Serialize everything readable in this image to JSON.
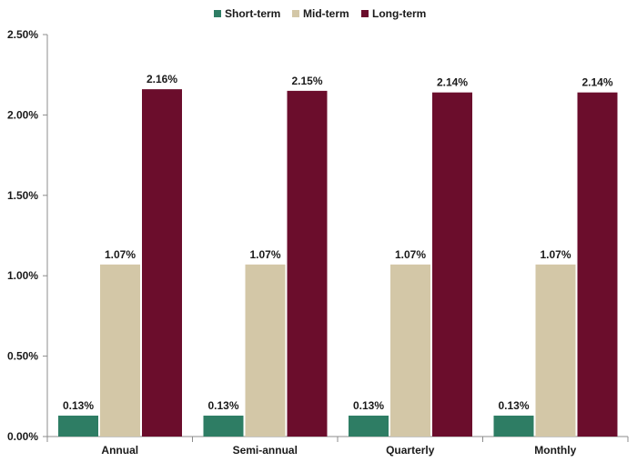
{
  "chart_data": {
    "type": "bar",
    "title": "",
    "xlabel": "",
    "ylabel": "",
    "categories": [
      "Annual",
      "Semi-annual",
      "Quarterly",
      "Monthly"
    ],
    "series": [
      {
        "name": "Short-term",
        "values": [
          0.13,
          0.13,
          0.13,
          0.13
        ],
        "labels": [
          "0.13%",
          "0.13%",
          "0.13%",
          "0.13%"
        ],
        "color": "#2e7d64"
      },
      {
        "name": "Mid-term",
        "values": [
          1.07,
          1.07,
          1.07,
          1.07
        ],
        "labels": [
          "1.07%",
          "1.07%",
          "1.07%",
          "1.07%"
        ],
        "color": "#d3c7a7"
      },
      {
        "name": "Long-term",
        "values": [
          2.16,
          2.15,
          2.14,
          2.14
        ],
        "labels": [
          "2.16%",
          "2.15%",
          "2.14%",
          "2.14%"
        ],
        "color": "#6b0d2c"
      }
    ],
    "ylim": [
      0,
      2.5
    ],
    "yticks": [
      {
        "value": 0,
        "label": "0.00%"
      },
      {
        "value": 0.5,
        "label": "0.50%"
      },
      {
        "value": 1.0,
        "label": "1.00%"
      },
      {
        "value": 1.5,
        "label": "1.50%"
      },
      {
        "value": 2.0,
        "label": "2.00%"
      },
      {
        "value": 2.5,
        "label": "2.50%"
      }
    ],
    "grid": false,
    "legend_position": "top-center"
  }
}
